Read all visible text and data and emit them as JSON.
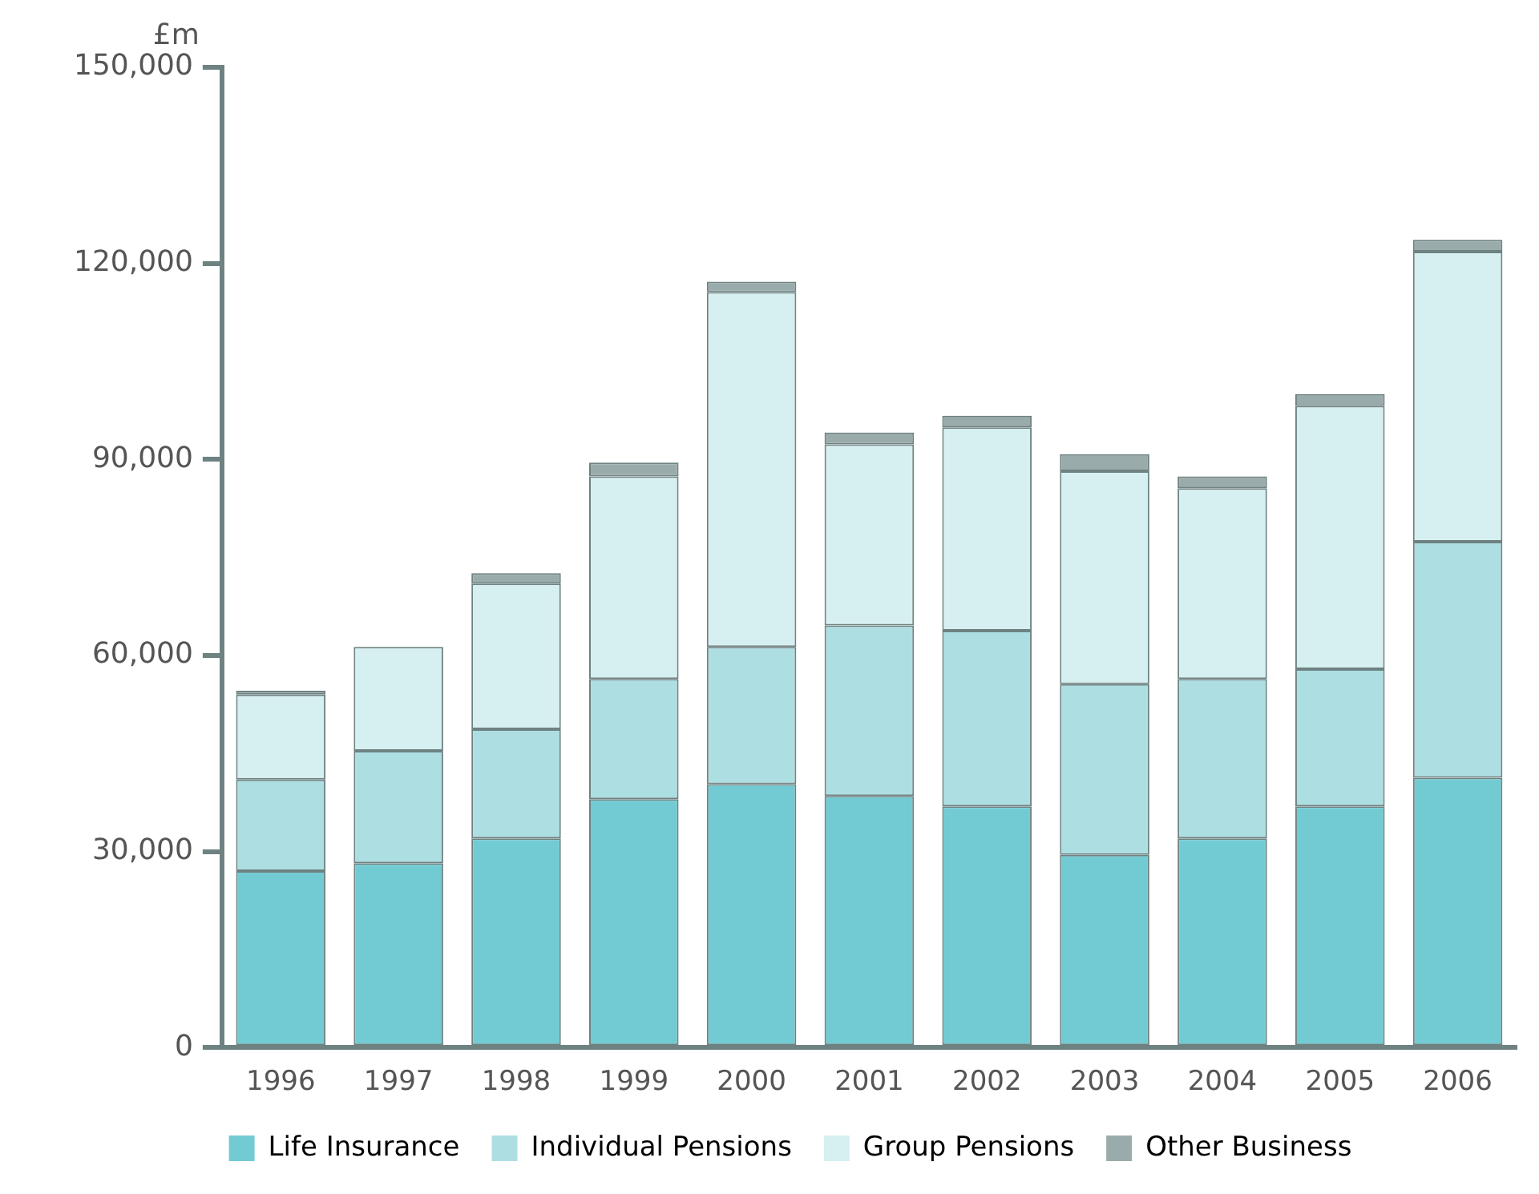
{
  "chart_data": {
    "type": "bar",
    "stacked": true,
    "ylabel": "£m",
    "categories": [
      "1996",
      "1997",
      "1998",
      "1999",
      "2000",
      "2001",
      "2002",
      "2003",
      "2004",
      "2005",
      "2006"
    ],
    "series": [
      {
        "name": "Life Insurance",
        "color": "#72cbd3",
        "values": [
          27000,
          28200,
          32000,
          38000,
          40300,
          38500,
          36900,
          29500,
          32000,
          36900,
          41300
        ]
      },
      {
        "name": "Individual Pensions",
        "color": "#addee2",
        "values": [
          14000,
          17200,
          16700,
          18400,
          21000,
          26100,
          26900,
          26100,
          24400,
          21000,
          36100
        ]
      },
      {
        "name": "Group Pensions",
        "color": "#d6eff0",
        "values": [
          13000,
          15900,
          22300,
          31000,
          54300,
          27700,
          31100,
          32600,
          29200,
          40300,
          44400
        ]
      },
      {
        "name": "Other Business",
        "color": "#9aabab",
        "values": [
          600,
          0,
          1600,
          2100,
          1600,
          1800,
          1800,
          2600,
          1800,
          1800,
          1800
        ]
      }
    ],
    "ylim": [
      0,
      150000
    ],
    "yticks": [
      0,
      {
        "value": 30000,
        "label": "30,000"
      },
      {
        "value": 60000,
        "label": "60,000"
      },
      {
        "value": 90000,
        "label": "90,000"
      },
      {
        "value": 120000,
        "label": "120,000"
      },
      {
        "value": 150000,
        "label": "150,000"
      }
    ],
    "grid": false,
    "legend": "bottom"
  }
}
